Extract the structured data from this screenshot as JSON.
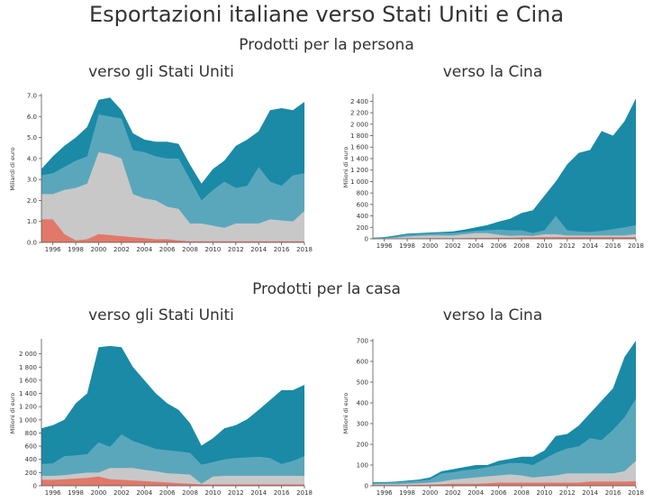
{
  "title": "Esportazioni italiane verso Stati Uniti e Cina",
  "sections": [
    "Prodotti per la persona",
    "Prodotti per la casa"
  ],
  "subtitles": [
    "verso gli Stati Uniti",
    "verso la Cina",
    "verso gli Stati Uniti",
    "verso la Cina"
  ],
  "colors": {
    "s1": "#e1786a",
    "s2": "#c8c8c8",
    "s3": "#5aa7bc",
    "s4": "#1a8aa6"
  },
  "chart_data": [
    {
      "type": "area",
      "ylabel": "Miliardi di euro",
      "ylim": [
        0,
        7
      ],
      "yticks": [
        0,
        1,
        2,
        3,
        4,
        5,
        6,
        7
      ],
      "ytick_labels": [
        "0.0",
        "1.0",
        "2.0",
        "3.0",
        "4.0",
        "5.0",
        "6.0",
        "7.0"
      ],
      "x": [
        1995,
        1996,
        1997,
        1998,
        1999,
        2000,
        2001,
        2002,
        2003,
        2004,
        2005,
        2006,
        2007,
        2008,
        2009,
        2010,
        2011,
        2012,
        2013,
        2014,
        2015,
        2016,
        2017,
        2018
      ],
      "xticks": [
        1996,
        1998,
        2000,
        2002,
        2004,
        2006,
        2008,
        2010,
        2012,
        2014,
        2016,
        2018
      ],
      "stack": [
        [
          1.1,
          1.1,
          0.4,
          0.1,
          0.15,
          0.4,
          0.35,
          0.3,
          0.25,
          0.2,
          0.15,
          0.15,
          0.1,
          0.05,
          0.05,
          0.05,
          0.05,
          0.05,
          0.05,
          0.05,
          0.05,
          0.05,
          0.05,
          0.05
        ],
        [
          2.3,
          2.3,
          2.5,
          2.6,
          2.8,
          4.3,
          4.2,
          4.0,
          2.3,
          2.1,
          2.0,
          1.7,
          1.6,
          0.9,
          0.9,
          0.8,
          0.7,
          0.9,
          0.9,
          0.9,
          1.1,
          1.05,
          1.0,
          1.5
        ],
        [
          3.2,
          3.3,
          3.6,
          3.9,
          4.1,
          6.1,
          6.0,
          5.9,
          4.4,
          4.3,
          4.1,
          4.0,
          4.0,
          3.0,
          2.0,
          2.5,
          2.9,
          2.6,
          2.7,
          3.6,
          2.9,
          2.7,
          3.2,
          3.3
        ],
        [
          3.5,
          4.1,
          4.6,
          5.0,
          5.5,
          6.8,
          6.9,
          6.3,
          5.2,
          4.9,
          4.8,
          4.8,
          4.7,
          3.7,
          2.8,
          3.5,
          3.9,
          4.6,
          4.9,
          5.3,
          6.3,
          6.4,
          6.3,
          6.7
        ]
      ]
    },
    {
      "type": "area",
      "ylabel": "Milioni di euro",
      "ylim": [
        0,
        2500
      ],
      "yticks": [
        0,
        200,
        400,
        600,
        800,
        1000,
        1200,
        1400,
        1600,
        1800,
        2000,
        2200,
        2400
      ],
      "ytick_labels": [
        "0",
        "200",
        "400",
        "600",
        "800",
        "1 000",
        "1 200",
        "1 400",
        "1 600",
        "1 800",
        "2 000",
        "2 200",
        "2 400"
      ],
      "x": [
        1995,
        1996,
        1997,
        1998,
        1999,
        2000,
        2001,
        2002,
        2003,
        2004,
        2005,
        2006,
        2007,
        2008,
        2009,
        2010,
        2011,
        2012,
        2013,
        2014,
        2015,
        2016,
        2017,
        2018
      ],
      "xticks": [
        1996,
        1998,
        2000,
        2002,
        2004,
        2006,
        2008,
        2010,
        2012,
        2014,
        2016,
        2018
      ],
      "stack": [
        [
          5,
          5,
          5,
          8,
          10,
          12,
          12,
          10,
          12,
          15,
          15,
          20,
          20,
          25,
          25,
          30,
          30,
          30,
          30,
          30,
          30,
          30,
          30,
          30
        ],
        [
          10,
          10,
          20,
          40,
          50,
          60,
          60,
          60,
          80,
          100,
          100,
          70,
          50,
          60,
          50,
          80,
          80,
          60,
          60,
          60,
          60,
          60,
          60,
          80
        ],
        [
          15,
          20,
          40,
          70,
          80,
          90,
          100,
          100,
          120,
          140,
          150,
          160,
          150,
          150,
          100,
          150,
          400,
          150,
          130,
          120,
          140,
          170,
          200,
          240
        ],
        [
          20,
          30,
          60,
          90,
          100,
          110,
          120,
          130,
          160,
          200,
          240,
          300,
          350,
          450,
          500,
          750,
          1000,
          1300,
          1500,
          1550,
          1880,
          1800,
          2050,
          2450
        ]
      ]
    },
    {
      "type": "area",
      "ylabel": "Milioni di euro",
      "ylim": [
        0,
        2200
      ],
      "yticks": [
        0,
        200,
        400,
        600,
        800,
        1000,
        1200,
        1400,
        1600,
        1800,
        2000
      ],
      "ytick_labels": [
        "0",
        "200",
        "400",
        "600",
        "800",
        "1 000",
        "1 200",
        "1 400",
        "1 600",
        "1 800",
        "2 000"
      ],
      "x": [
        1995,
        1996,
        1997,
        1998,
        1999,
        2000,
        2001,
        2002,
        2003,
        2004,
        2005,
        2006,
        2007,
        2008,
        2009,
        2010,
        2011,
        2012,
        2013,
        2014,
        2015,
        2016,
        2017,
        2018
      ],
      "xticks": [
        1996,
        1998,
        2000,
        2002,
        2004,
        2006,
        2008,
        2010,
        2012,
        2014,
        2016,
        2018
      ],
      "stack": [
        [
          90,
          90,
          100,
          110,
          120,
          140,
          100,
          90,
          80,
          70,
          60,
          50,
          40,
          30,
          20,
          20,
          20,
          20,
          20,
          20,
          20,
          20,
          20,
          20
        ],
        [
          150,
          150,
          160,
          180,
          200,
          200,
          270,
          270,
          270,
          240,
          220,
          190,
          180,
          170,
          30,
          140,
          150,
          150,
          150,
          150,
          150,
          150,
          150,
          150
        ],
        [
          330,
          340,
          450,
          460,
          480,
          660,
          590,
          780,
          680,
          620,
          560,
          540,
          520,
          500,
          320,
          360,
          400,
          420,
          430,
          440,
          420,
          330,
          380,
          450
        ],
        [
          850,
          900,
          780,
          1200,
          1300,
          2000,
          2000,
          2000,
          1700,
          1500,
          1250,
          1150,
          1100,
          800,
          560,
          700,
          850,
          900,
          930,
          1050,
          1150,
          1250,
          1300,
          1450
        ],
        [
          870,
          920,
          1000,
          1250,
          1400,
          2100,
          2120,
          2100,
          1800,
          1600,
          1400,
          1250,
          1150,
          950,
          610,
          720,
          870,
          920,
          1010,
          1150,
          1300,
          1450,
          1450,
          1530
        ]
      ]
    },
    {
      "type": "area",
      "ylabel": "Milioni di euro",
      "ylim": [
        0,
        700
      ],
      "yticks": [
        0,
        100,
        200,
        300,
        400,
        500,
        600,
        700
      ],
      "ytick_labels": [
        "0",
        "100",
        "200",
        "300",
        "400",
        "500",
        "600",
        "700"
      ],
      "x": [
        1995,
        1996,
        1997,
        1998,
        1999,
        2000,
        2001,
        2002,
        2003,
        2004,
        2005,
        2006,
        2007,
        2008,
        2009,
        2010,
        2011,
        2012,
        2013,
        2014,
        2015,
        2016,
        2017,
        2018
      ],
      "xticks": [
        1996,
        1998,
        2000,
        2002,
        2004,
        2006,
        2008,
        2010,
        2012,
        2014,
        2016,
        2018
      ],
      "stack": [
        [
          3,
          3,
          3,
          4,
          5,
          6,
          8,
          10,
          10,
          10,
          12,
          15,
          15,
          15,
          15,
          15,
          15,
          15,
          15,
          20,
          20,
          20,
          20,
          22
        ],
        [
          8,
          8,
          8,
          10,
          12,
          15,
          20,
          30,
          35,
          40,
          45,
          50,
          55,
          50,
          40,
          45,
          50,
          60,
          60,
          60,
          60,
          60,
          70,
          120
        ],
        [
          15,
          15,
          17,
          20,
          25,
          30,
          60,
          65,
          75,
          80,
          90,
          100,
          110,
          110,
          100,
          130,
          160,
          180,
          190,
          230,
          220,
          270,
          330,
          420
        ],
        [
          18,
          18,
          20,
          25,
          30,
          40,
          70,
          80,
          90,
          100,
          100,
          120,
          130,
          140,
          140,
          170,
          240,
          250,
          290,
          350,
          410,
          470,
          620,
          700
        ]
      ]
    }
  ]
}
